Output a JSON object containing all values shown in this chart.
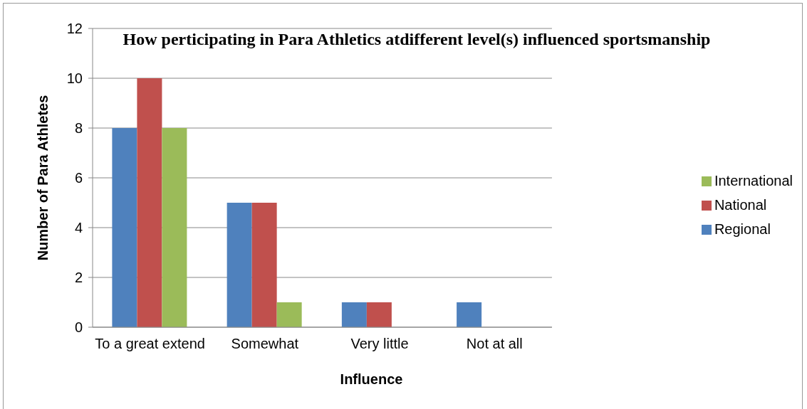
{
  "chart_data": {
    "type": "bar",
    "title": "How perticipating in Para Athletics atdifferent level(s) influenced sportsmanship",
    "xlabel": "Influence",
    "ylabel": "Number of Para Athletes",
    "categories": [
      "To a great extend",
      "Somewhat",
      "Very little",
      "Not at all"
    ],
    "series": [
      {
        "name": "Regional",
        "color": "#4f81bd",
        "values": [
          8,
          5,
          1,
          1
        ]
      },
      {
        "name": "National",
        "color": "#c0504d",
        "values": [
          10,
          5,
          1,
          0
        ]
      },
      {
        "name": "International",
        "color": "#9bbb59",
        "values": [
          8,
          1,
          0,
          0
        ]
      }
    ],
    "ylim": [
      0,
      12
    ],
    "yticks": [
      0,
      2,
      4,
      6,
      8,
      10,
      12
    ],
    "grid": "y",
    "legend": "right"
  }
}
